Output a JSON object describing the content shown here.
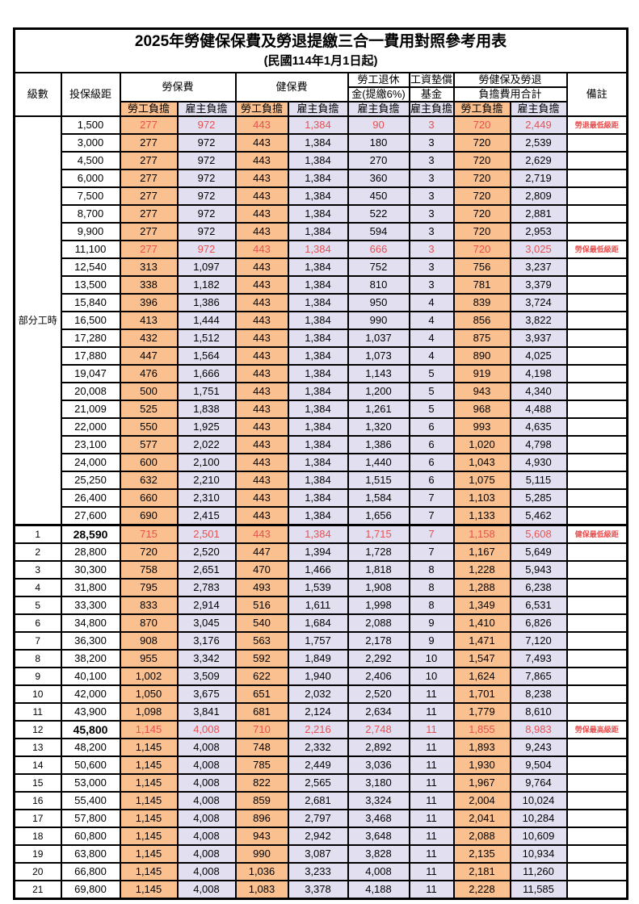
{
  "page": {
    "title": "2025年勞健保保費及勞退提繳三合一費用對照參考用表",
    "subtitle": "(民國114年1月1日起)"
  },
  "colors": {
    "employee_column_bg": "#FAC090",
    "employer_column_bg": "#E2DFF1",
    "highlight_text": "#E85050",
    "border": "#000000",
    "page_bg": "#FFFFFF"
  },
  "header": {
    "grade": "級數",
    "bracket": "投保級距",
    "labor_fee": "勞保費",
    "health_fee": "健保費",
    "pension_line1": "勞工退休",
    "pension_line2": "金(提繳6%)",
    "fund_line1": "工資墊償",
    "fund_line2": "基金",
    "total_line1": "勞健保及勞退",
    "total_line2": "負擔費用合計",
    "remark": "備註",
    "employee_share": "勞工負擔",
    "employer_share": "雇主負擔"
  },
  "part_time": {
    "label": "部分工時",
    "rowspan": 23
  },
  "row_fields": [
    "grade",
    "bracket",
    "labor_employee",
    "labor_employer",
    "health_employee",
    "health_employer",
    "pension_employer",
    "fund_employer",
    "total_employee",
    "total_employer",
    "remark",
    "highlight",
    "bold_bracket",
    "thick_top"
  ],
  "rows": [
    [
      "",
      "1,500",
      "277",
      "972",
      "443",
      "1,384",
      "90",
      "3",
      "720",
      "2,449",
      "勞退最低級距",
      1,
      0,
      0
    ],
    [
      "",
      "3,000",
      "277",
      "972",
      "443",
      "1,384",
      "180",
      "3",
      "720",
      "2,539",
      "",
      0,
      0,
      0
    ],
    [
      "",
      "4,500",
      "277",
      "972",
      "443",
      "1,384",
      "270",
      "3",
      "720",
      "2,629",
      "",
      0,
      0,
      0
    ],
    [
      "",
      "6,000",
      "277",
      "972",
      "443",
      "1,384",
      "360",
      "3",
      "720",
      "2,719",
      "",
      0,
      0,
      0
    ],
    [
      "",
      "7,500",
      "277",
      "972",
      "443",
      "1,384",
      "450",
      "3",
      "720",
      "2,809",
      "",
      0,
      0,
      0
    ],
    [
      "",
      "8,700",
      "277",
      "972",
      "443",
      "1,384",
      "522",
      "3",
      "720",
      "2,881",
      "",
      0,
      0,
      0
    ],
    [
      "",
      "9,900",
      "277",
      "972",
      "443",
      "1,384",
      "594",
      "3",
      "720",
      "2,953",
      "",
      0,
      0,
      0
    ],
    [
      "",
      "11,100",
      "277",
      "972",
      "443",
      "1,384",
      "666",
      "3",
      "720",
      "3,025",
      "勞保最低級距",
      1,
      0,
      0
    ],
    [
      "",
      "12,540",
      "313",
      "1,097",
      "443",
      "1,384",
      "752",
      "3",
      "756",
      "3,237",
      "",
      0,
      0,
      0
    ],
    [
      "",
      "13,500",
      "338",
      "1,182",
      "443",
      "1,384",
      "810",
      "3",
      "781",
      "3,379",
      "",
      0,
      0,
      0
    ],
    [
      "",
      "15,840",
      "396",
      "1,386",
      "443",
      "1,384",
      "950",
      "4",
      "839",
      "3,724",
      "",
      0,
      0,
      0
    ],
    [
      "",
      "16,500",
      "413",
      "1,444",
      "443",
      "1,384",
      "990",
      "4",
      "856",
      "3,822",
      "",
      0,
      0,
      0
    ],
    [
      "",
      "17,280",
      "432",
      "1,512",
      "443",
      "1,384",
      "1,037",
      "4",
      "875",
      "3,937",
      "",
      0,
      0,
      0
    ],
    [
      "",
      "17,880",
      "447",
      "1,564",
      "443",
      "1,384",
      "1,073",
      "4",
      "890",
      "4,025",
      "",
      0,
      0,
      0
    ],
    [
      "",
      "19,047",
      "476",
      "1,666",
      "443",
      "1,384",
      "1,143",
      "5",
      "919",
      "4,198",
      "",
      0,
      0,
      0
    ],
    [
      "",
      "20,008",
      "500",
      "1,751",
      "443",
      "1,384",
      "1,200",
      "5",
      "943",
      "4,340",
      "",
      0,
      0,
      0
    ],
    [
      "",
      "21,009",
      "525",
      "1,838",
      "443",
      "1,384",
      "1,261",
      "5",
      "968",
      "4,488",
      "",
      0,
      0,
      0
    ],
    [
      "",
      "22,000",
      "550",
      "1,925",
      "443",
      "1,384",
      "1,320",
      "6",
      "993",
      "4,635",
      "",
      0,
      0,
      0
    ],
    [
      "",
      "23,100",
      "577",
      "2,022",
      "443",
      "1,384",
      "1,386",
      "6",
      "1,020",
      "4,798",
      "",
      0,
      0,
      0
    ],
    [
      "",
      "24,000",
      "600",
      "2,100",
      "443",
      "1,384",
      "1,440",
      "6",
      "1,043",
      "4,930",
      "",
      0,
      0,
      0
    ],
    [
      "",
      "25,250",
      "632",
      "2,210",
      "443",
      "1,384",
      "1,515",
      "6",
      "1,075",
      "5,115",
      "",
      0,
      0,
      0
    ],
    [
      "",
      "26,400",
      "660",
      "2,310",
      "443",
      "1,384",
      "1,584",
      "7",
      "1,103",
      "5,285",
      "",
      0,
      0,
      0
    ],
    [
      "",
      "27,600",
      "690",
      "2,415",
      "443",
      "1,384",
      "1,656",
      "7",
      "1,133",
      "5,462",
      "",
      0,
      0,
      0
    ],
    [
      "1",
      "28,590",
      "715",
      "2,501",
      "443",
      "1,384",
      "1,715",
      "7",
      "1,158",
      "5,608",
      "健保最低級距",
      1,
      1,
      1
    ],
    [
      "2",
      "28,800",
      "720",
      "2,520",
      "447",
      "1,394",
      "1,728",
      "7",
      "1,167",
      "5,649",
      "",
      0,
      0,
      0
    ],
    [
      "3",
      "30,300",
      "758",
      "2,651",
      "470",
      "1,466",
      "1,818",
      "8",
      "1,228",
      "5,943",
      "",
      0,
      0,
      0
    ],
    [
      "4",
      "31,800",
      "795",
      "2,783",
      "493",
      "1,539",
      "1,908",
      "8",
      "1,288",
      "6,238",
      "",
      0,
      0,
      0
    ],
    [
      "5",
      "33,300",
      "833",
      "2,914",
      "516",
      "1,611",
      "1,998",
      "8",
      "1,349",
      "6,531",
      "",
      0,
      0,
      0
    ],
    [
      "6",
      "34,800",
      "870",
      "3,045",
      "540",
      "1,684",
      "2,088",
      "9",
      "1,410",
      "6,826",
      "",
      0,
      0,
      0
    ],
    [
      "7",
      "36,300",
      "908",
      "3,176",
      "563",
      "1,757",
      "2,178",
      "9",
      "1,471",
      "7,120",
      "",
      0,
      0,
      0
    ],
    [
      "8",
      "38,200",
      "955",
      "3,342",
      "592",
      "1,849",
      "2,292",
      "10",
      "1,547",
      "7,493",
      "",
      0,
      0,
      0
    ],
    [
      "9",
      "40,100",
      "1,002",
      "3,509",
      "622",
      "1,940",
      "2,406",
      "10",
      "1,624",
      "7,865",
      "",
      0,
      0,
      0
    ],
    [
      "10",
      "42,000",
      "1,050",
      "3,675",
      "651",
      "2,032",
      "2,520",
      "11",
      "1,701",
      "8,238",
      "",
      0,
      0,
      0
    ],
    [
      "11",
      "43,900",
      "1,098",
      "3,841",
      "681",
      "2,124",
      "2,634",
      "11",
      "1,779",
      "8,610",
      "",
      0,
      0,
      0
    ],
    [
      "12",
      "45,800",
      "1,145",
      "4,008",
      "710",
      "2,216",
      "2,748",
      "11",
      "1,855",
      "8,983",
      "勞保最高級距",
      1,
      1,
      0
    ],
    [
      "13",
      "48,200",
      "1,145",
      "4,008",
      "748",
      "2,332",
      "2,892",
      "11",
      "1,893",
      "9,243",
      "",
      0,
      0,
      0
    ],
    [
      "14",
      "50,600",
      "1,145",
      "4,008",
      "785",
      "2,449",
      "3,036",
      "11",
      "1,930",
      "9,504",
      "",
      0,
      0,
      0
    ],
    [
      "15",
      "53,000",
      "1,145",
      "4,008",
      "822",
      "2,565",
      "3,180",
      "11",
      "1,967",
      "9,764",
      "",
      0,
      0,
      0
    ],
    [
      "16",
      "55,400",
      "1,145",
      "4,008",
      "859",
      "2,681",
      "3,324",
      "11",
      "2,004",
      "10,024",
      "",
      0,
      0,
      0
    ],
    [
      "17",
      "57,800",
      "1,145",
      "4,008",
      "896",
      "2,797",
      "3,468",
      "11",
      "2,041",
      "10,284",
      "",
      0,
      0,
      0
    ],
    [
      "18",
      "60,800",
      "1,145",
      "4,008",
      "943",
      "2,942",
      "3,648",
      "11",
      "2,088",
      "10,609",
      "",
      0,
      0,
      0
    ],
    [
      "19",
      "63,800",
      "1,145",
      "4,008",
      "990",
      "3,087",
      "3,828",
      "11",
      "2,135",
      "10,934",
      "",
      0,
      0,
      0
    ],
    [
      "20",
      "66,800",
      "1,145",
      "4,008",
      "1,036",
      "3,233",
      "4,008",
      "11",
      "2,181",
      "11,260",
      "",
      0,
      0,
      0
    ],
    [
      "21",
      "69,800",
      "1,145",
      "4,008",
      "1,083",
      "3,378",
      "4,188",
      "11",
      "2,228",
      "11,585",
      "",
      0,
      0,
      0
    ]
  ]
}
